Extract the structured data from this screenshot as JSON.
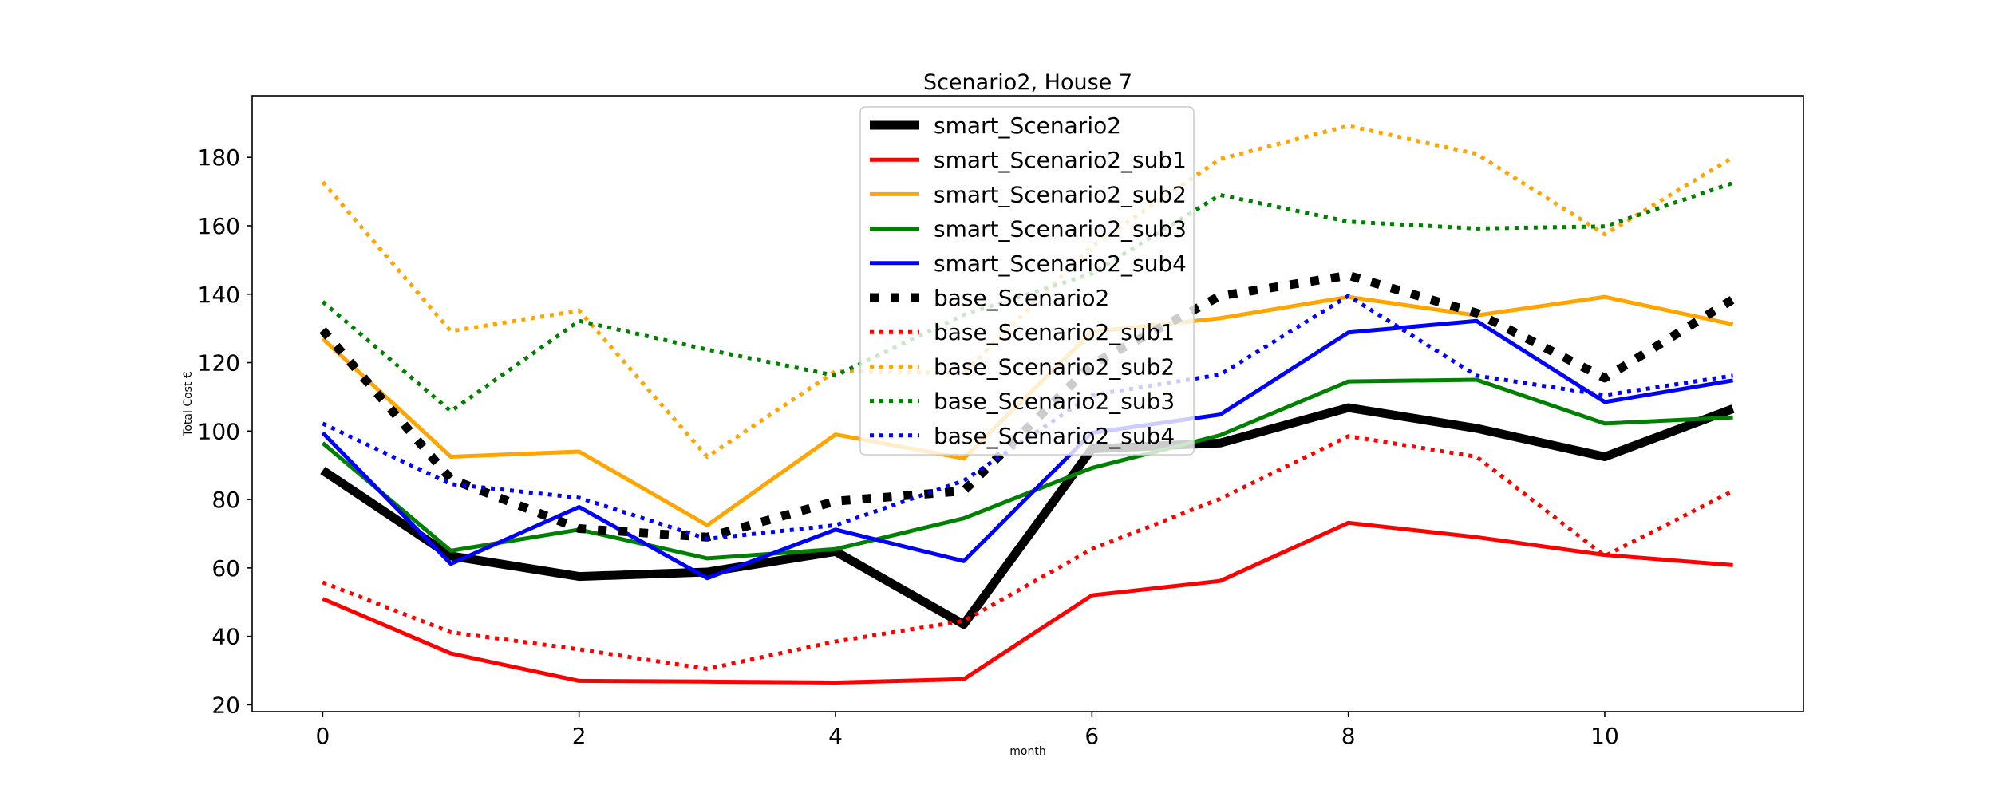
{
  "chart_data": {
    "type": "line",
    "title": "Scenario2, House 7",
    "xlabel": "month",
    "ylabel": "Total Cost €",
    "xlim": [
      -0.55,
      11.55
    ],
    "ylim": [
      18,
      198
    ],
    "xticks": [
      0,
      2,
      4,
      6,
      8,
      10
    ],
    "yticks": [
      20,
      40,
      60,
      80,
      100,
      120,
      140,
      160,
      180
    ],
    "grid": false,
    "legend_position": "top-center",
    "x": [
      0,
      1,
      2,
      3,
      4,
      5,
      6,
      7,
      8,
      9,
      10,
      11
    ],
    "series": [
      {
        "name": "smart_Scenario2",
        "color": "#000000",
        "style": "solid",
        "weight": "heavy",
        "values": [
          88.5,
          63.5,
          57.5,
          58.8,
          64.8,
          43.5,
          94.8,
          96.5,
          106.8,
          100.8,
          92.5,
          106.5
        ]
      },
      {
        "name": "smart_Scenario2_sub1",
        "color": "#ff0000",
        "style": "solid",
        "weight": "normal",
        "values": [
          51,
          35,
          27,
          26.8,
          26.5,
          27.5,
          52,
          56.2,
          73.2,
          69,
          63.8,
          60.8
        ]
      },
      {
        "name": "smart_Scenario2_sub2",
        "color": "#ffa500",
        "style": "solid",
        "weight": "normal",
        "values": [
          127,
          92.5,
          94,
          72.5,
          99,
          92,
          129,
          133,
          139.2,
          133.8,
          139.2,
          131.2
        ]
      },
      {
        "name": "smart_Scenario2_sub3",
        "color": "#008000",
        "style": "solid",
        "weight": "normal",
        "values": [
          96.5,
          65,
          71.2,
          62.8,
          65.5,
          74.5,
          89.2,
          98.8,
          114.5,
          115,
          102.2,
          104
        ]
      },
      {
        "name": "smart_Scenario2_sub4",
        "color": "#0000ff",
        "style": "solid",
        "weight": "normal",
        "values": [
          99.5,
          61.2,
          77.8,
          57,
          71.2,
          62,
          99.5,
          104.8,
          128.8,
          132.2,
          108.5,
          114.8
        ]
      },
      {
        "name": "base_Scenario2",
        "color": "#000000",
        "style": "dotted",
        "weight": "heavy",
        "values": [
          129.5,
          86,
          71.5,
          69,
          79.5,
          82.5,
          119.5,
          139.5,
          145.5,
          134.5,
          115.5,
          138.5
        ]
      },
      {
        "name": "base_Scenario2_sub1",
        "color": "#ff0000",
        "style": "dotted",
        "weight": "normal",
        "values": [
          55.8,
          41.2,
          36.2,
          30.5,
          38.5,
          44.5,
          65.5,
          80.2,
          98.5,
          92.5,
          63.5,
          82.5
        ]
      },
      {
        "name": "base_Scenario2_sub2",
        "color": "#ffa500",
        "style": "dotted",
        "weight": "normal",
        "values": [
          172.8,
          129.2,
          135.2,
          92.5,
          117.5,
          117,
          154,
          179.5,
          189.2,
          181,
          157.5,
          180
        ]
      },
      {
        "name": "base_Scenario2_sub3",
        "color": "#008000",
        "style": "dotted",
        "weight": "normal",
        "values": [
          137.8,
          105.8,
          132.2,
          123.8,
          116.2,
          134,
          146,
          169,
          161.2,
          159.2,
          159.8,
          172.5
        ]
      },
      {
        "name": "base_Scenario2_sub4",
        "color": "#0000ff",
        "style": "dotted",
        "weight": "normal",
        "values": [
          102.2,
          84.5,
          80.5,
          68.5,
          72.5,
          85.5,
          110.5,
          116.5,
          139.5,
          116.2,
          110.5,
          116.2
        ]
      }
    ]
  }
}
